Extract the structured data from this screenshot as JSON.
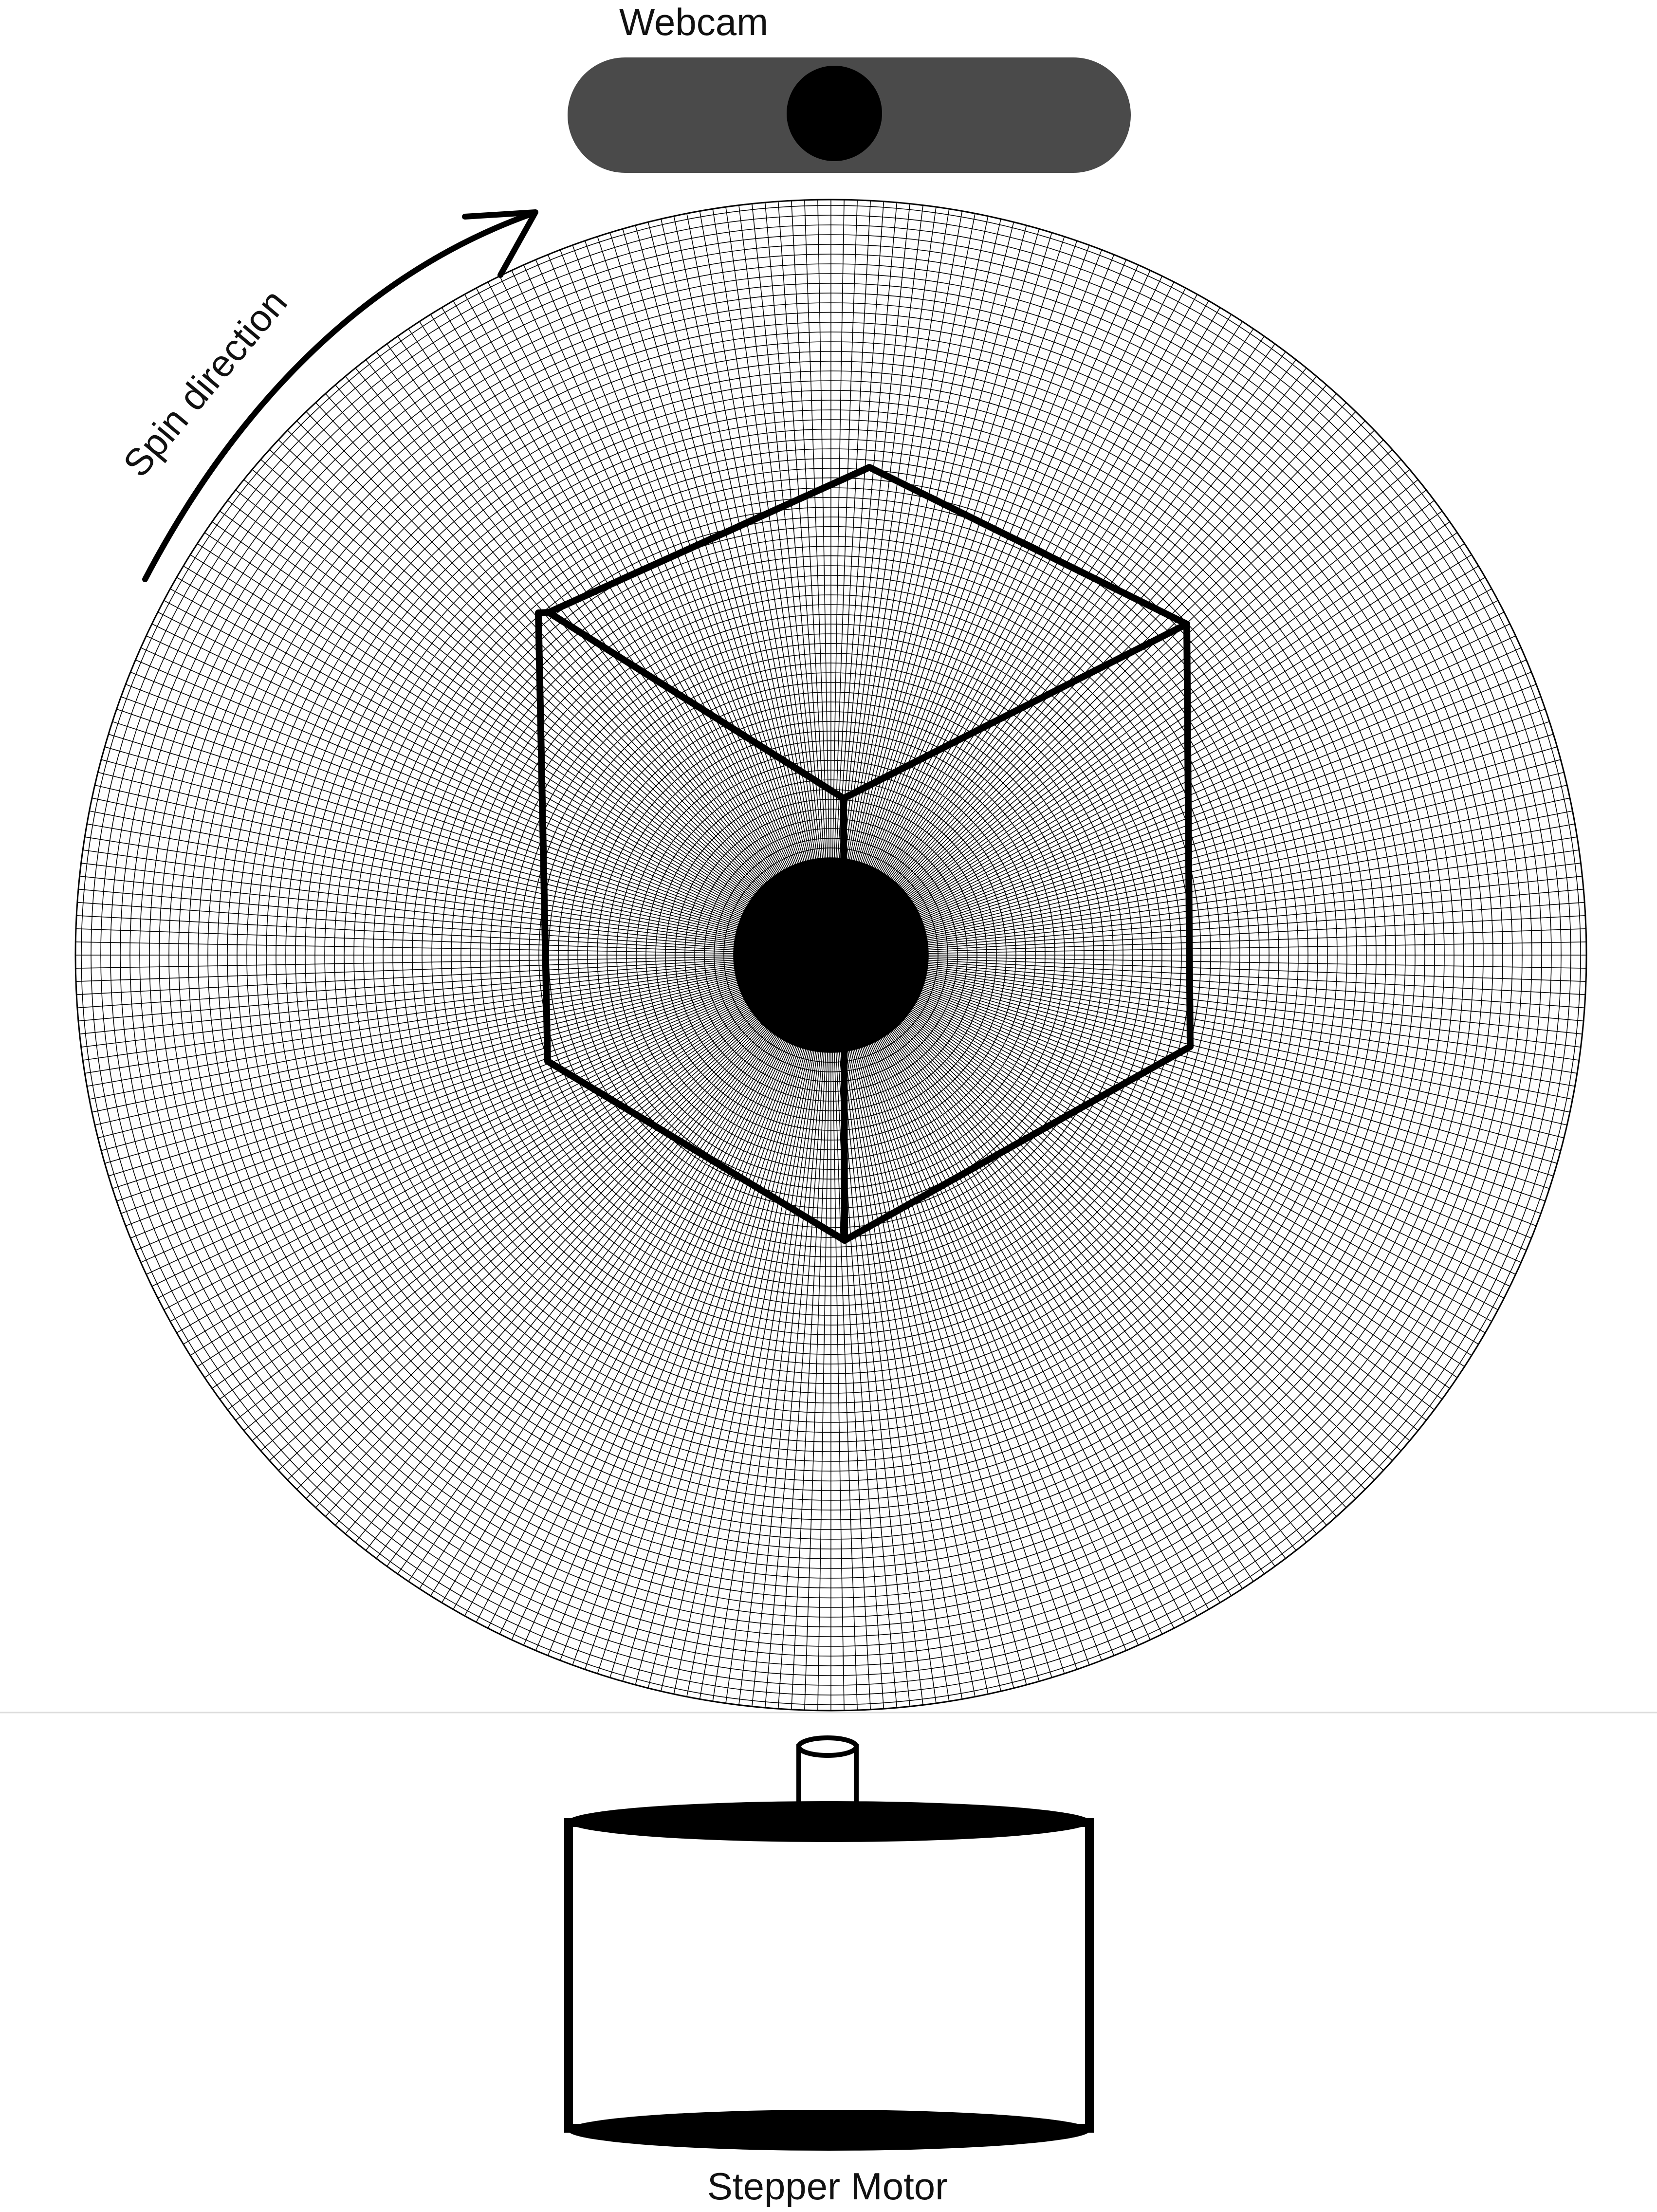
{
  "labels": {
    "webcam": "Webcam",
    "spin_direction": "Spin direction",
    "stepper_motor": "Stepper Motor"
  },
  "colors": {
    "background": "#ffffff",
    "ink": "#000000",
    "webcam_body": "#4a4a4a",
    "webcam_lens": "#000000",
    "divider": "#dddddd"
  },
  "icons": {
    "webcam": "webcam-icon",
    "lens": "lens-icon",
    "spin_arrow": "curved-arrow-icon",
    "turntable": "polar-grid-turntable",
    "cube": "cube-object",
    "motor": "stepper-motor-icon"
  }
}
